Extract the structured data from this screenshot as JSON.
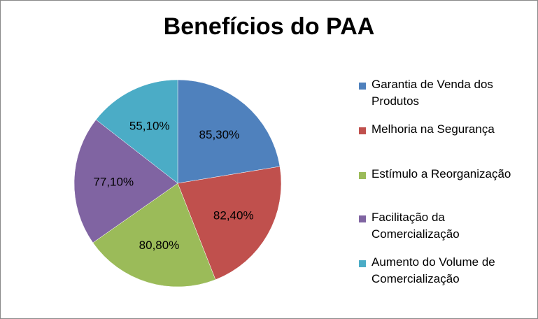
{
  "chart_data": {
    "type": "pie",
    "title": "Benefícios do PAA",
    "categories": [
      "Garantia de Venda dos Produtos",
      "Melhoria na Segurança",
      "Estímulo a Reorganização",
      "Facilitação da Comercialização",
      "Aumento do Volume de Comercialização"
    ],
    "values": [
      85.3,
      82.4,
      80.8,
      77.1,
      55.1
    ],
    "labels": [
      "85,30%",
      "82,40%",
      "80,80%",
      "77,10%",
      "55,10%"
    ],
    "colors": [
      "#4F81BD",
      "#C0504D",
      "#9BBB59",
      "#8064A2",
      "#4BACC6"
    ],
    "legend": "right"
  },
  "legend": {
    "items": [
      {
        "label_line1": "Garantia de Venda dos",
        "label_line2": "Produtos",
        "color": "#4F81BD"
      },
      {
        "label_line1": "Melhoria na Segurança",
        "label_line2": "",
        "color": "#C0504D"
      },
      {
        "label_line1": "Estímulo a Reorganização",
        "label_line2": "",
        "color": "#9BBB59"
      },
      {
        "label_line1": "Facilitação da",
        "label_line2": "Comercialização",
        "color": "#8064A2"
      },
      {
        "label_line1": "Aumento do Volume de",
        "label_line2": "Comercialização",
        "color": "#4BACC6"
      }
    ]
  }
}
